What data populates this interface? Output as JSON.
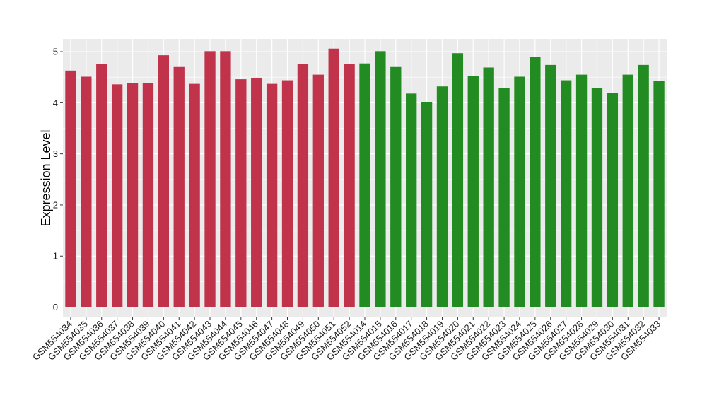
{
  "chart_data": {
    "type": "bar",
    "title": "",
    "xlabel": "",
    "ylabel": "Expression Level",
    "ylim": [
      -0.2,
      5.25
    ],
    "yticks": [
      0,
      1,
      2,
      3,
      4,
      5
    ],
    "grid": true,
    "panel_background": "#ebebeb",
    "categories": [
      "GSM554034",
      "GSM554035",
      "GSM554036",
      "GSM554037",
      "GSM554038",
      "GSM554039",
      "GSM554040",
      "GSM554041",
      "GSM554042",
      "GSM554043",
      "GSM554044",
      "GSM554045",
      "GSM554046",
      "GSM554047",
      "GSM554048",
      "GSM554049",
      "GSM554050",
      "GSM554051",
      "GSM554052",
      "GSM554014",
      "GSM554015",
      "GSM554016",
      "GSM554017",
      "GSM554018",
      "GSM554019",
      "GSM554020",
      "GSM554021",
      "GSM554022",
      "GSM554023",
      "GSM554024",
      "GSM554025",
      "GSM554026",
      "GSM554027",
      "GSM554028",
      "GSM554029",
      "GSM554030",
      "GSM554031",
      "GSM554032",
      "GSM554033"
    ],
    "values": [
      4.63,
      4.51,
      4.76,
      4.36,
      4.39,
      4.39,
      4.93,
      4.7,
      4.37,
      5.01,
      5.01,
      4.46,
      4.49,
      4.37,
      4.44,
      4.76,
      4.55,
      5.06,
      4.76,
      4.77,
      5.01,
      4.7,
      4.18,
      4.01,
      4.32,
      4.97,
      4.53,
      4.69,
      4.29,
      4.51,
      4.9,
      4.74,
      4.44,
      4.55,
      4.29,
      4.19,
      4.55,
      4.74,
      4.43
    ],
    "bar_colors": [
      "#c0334a",
      "#c0334a",
      "#c0334a",
      "#c0334a",
      "#c0334a",
      "#c0334a",
      "#c0334a",
      "#c0334a",
      "#c0334a",
      "#c0334a",
      "#c0334a",
      "#c0334a",
      "#c0334a",
      "#c0334a",
      "#c0334a",
      "#c0334a",
      "#c0334a",
      "#c0334a",
      "#c0334a",
      "#228b22",
      "#228b22",
      "#228b22",
      "#228b22",
      "#228b22",
      "#228b22",
      "#228b22",
      "#228b22",
      "#228b22",
      "#228b22",
      "#228b22",
      "#228b22",
      "#228b22",
      "#228b22",
      "#228b22",
      "#228b22",
      "#228b22",
      "#228b22",
      "#228b22",
      "#228b22"
    ]
  }
}
